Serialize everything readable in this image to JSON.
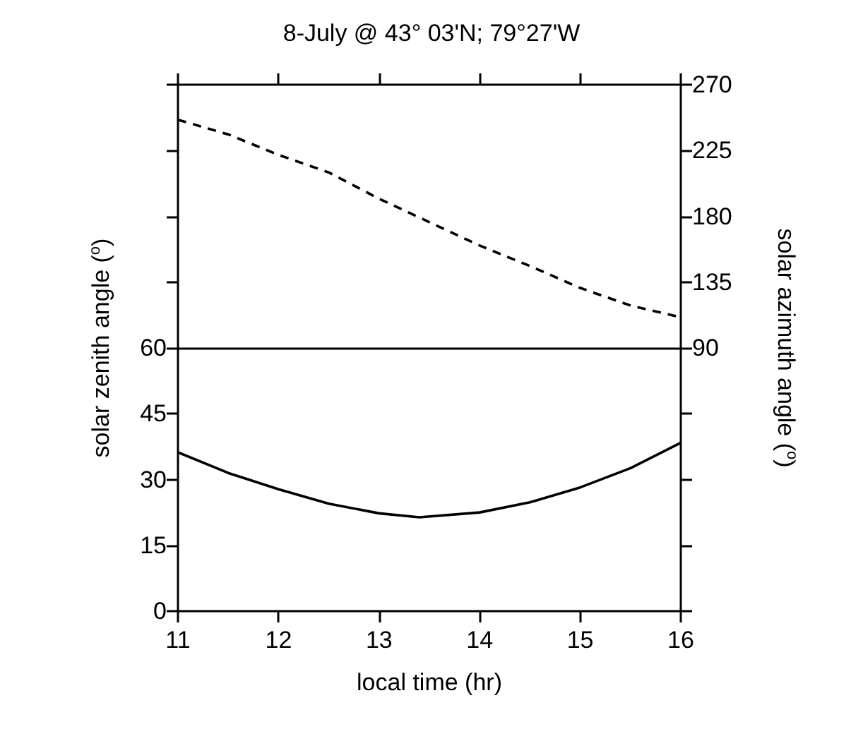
{
  "chart_data": {
    "type": "line",
    "title": "8-July @ 43° 03'N; 79°27'W",
    "xlabel": "local time (hr)",
    "ylabel": "solar zenith angle ($^{o}$)",
    "y2label": "solar azimuth angle ($^{o}$)",
    "x": [
      11,
      11.5,
      12,
      12.5,
      13,
      13.4,
      14,
      14.5,
      15,
      15.5,
      16
    ],
    "series": [
      {
        "color": "#000000",
        "line_style": "solid",
        "values": [
          36.2,
          31.5,
          27.8,
          24.5,
          22.3,
          21.4,
          22.5,
          24.8,
          28.2,
          32.6,
          38.4
        ]
      },
      {
        "color": "#000000",
        "line_style": "dashed",
        "axis": "y2",
        "x": [
          11,
          11.5,
          12,
          12.5,
          13,
          13.5,
          14,
          14.5,
          15,
          15.5,
          16
        ],
        "values": [
          246,
          236,
          222,
          210,
          192,
          176,
          160,
          146,
          131,
          119,
          111
        ]
      }
    ],
    "xlim": [
      11,
      16
    ],
    "xticks": [
      11,
      12,
      13,
      14,
      15,
      16
    ],
    "ylim": [
      0,
      120
    ],
    "yticks": [
      0,
      15,
      30,
      45,
      60,
      {
        "value": 75,
        "label": null
      },
      {
        "value": 90,
        "label": null
      },
      {
        "value": 105,
        "label": null
      },
      {
        "value": 120,
        "label": null
      }
    ],
    "y2lim": [
      -90,
      270
    ],
    "y2ticks": [
      {
        "value": -90,
        "label": null
      },
      {
        "value": -45,
        "label": null
      },
      {
        "value": 0,
        "label": null
      },
      {
        "value": 45,
        "label": null
      },
      90,
      135,
      180,
      225,
      270
    ],
    "ref_lines": [
      {
        "axis": "y",
        "value": 60,
        "color": "#000000"
      }
    ],
    "marker": "none",
    "grid": false
  }
}
